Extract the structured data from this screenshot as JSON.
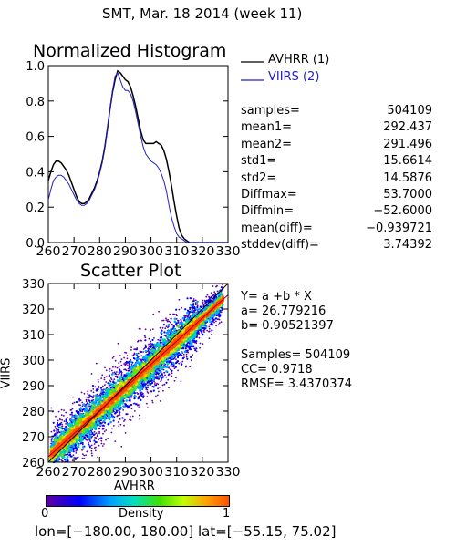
{
  "header": "SMT,  Mar. 18 2014 (week 11)",
  "colors": {
    "series1": "#000000",
    "series2": "#2020c8",
    "fit": "#000000"
  },
  "chart_data": [
    {
      "type": "line",
      "title": "Normalized Histogram",
      "xlim": [
        260,
        330
      ],
      "ylim": [
        0.0,
        1.0
      ],
      "xticks": [
        260,
        270,
        280,
        290,
        300,
        310,
        320,
        330
      ],
      "yticks": [
        0.0,
        0.2,
        0.4,
        0.6,
        0.8,
        1.0
      ],
      "legend_placement": "right",
      "x": [
        260,
        261,
        262,
        263,
        264,
        265,
        266,
        267,
        268,
        269,
        270,
        271,
        272,
        273,
        274,
        275,
        276,
        277,
        278,
        279,
        280,
        281,
        282,
        283,
        284,
        285,
        286,
        287,
        288,
        289,
        290,
        291,
        292,
        293,
        294,
        295,
        296,
        297,
        298,
        299,
        300,
        301,
        302,
        303,
        304,
        305,
        306,
        307,
        308,
        309,
        310,
        311,
        312,
        313,
        314,
        315,
        316,
        317,
        318,
        319,
        320,
        321,
        322,
        323,
        324,
        325,
        326,
        327,
        328,
        329,
        330
      ],
      "series": [
        {
          "name": "AVHRR (1)",
          "values": [
            0.35,
            0.4,
            0.44,
            0.46,
            0.46,
            0.45,
            0.43,
            0.41,
            0.38,
            0.34,
            0.3,
            0.26,
            0.23,
            0.22,
            0.22,
            0.23,
            0.25,
            0.28,
            0.31,
            0.35,
            0.4,
            0.46,
            0.54,
            0.64,
            0.75,
            0.85,
            0.92,
            0.97,
            0.96,
            0.94,
            0.92,
            0.91,
            0.88,
            0.83,
            0.77,
            0.7,
            0.63,
            0.58,
            0.56,
            0.56,
            0.56,
            0.56,
            0.57,
            0.56,
            0.55,
            0.52,
            0.47,
            0.4,
            0.32,
            0.23,
            0.15,
            0.08,
            0.04,
            0.02,
            0.01,
            0.0,
            0.0,
            0.0,
            0.0,
            0.0,
            0.0,
            0.0,
            0.0,
            0.0,
            0.0,
            0.0,
            0.0,
            0.0,
            0.0,
            0.0,
            0.0
          ]
        },
        {
          "name": "VIIRS (2)",
          "values": [
            0.24,
            0.3,
            0.35,
            0.37,
            0.38,
            0.38,
            0.37,
            0.35,
            0.33,
            0.3,
            0.27,
            0.24,
            0.22,
            0.21,
            0.21,
            0.22,
            0.24,
            0.27,
            0.3,
            0.34,
            0.39,
            0.45,
            0.53,
            0.63,
            0.75,
            0.86,
            0.94,
            0.96,
            0.92,
            0.88,
            0.86,
            0.86,
            0.84,
            0.8,
            0.74,
            0.67,
            0.6,
            0.54,
            0.5,
            0.48,
            0.46,
            0.45,
            0.44,
            0.42,
            0.39,
            0.35,
            0.29,
            0.21,
            0.14,
            0.09,
            0.05,
            0.03,
            0.02,
            0.01,
            0.0,
            0.0,
            0.0,
            0.0,
            0.0,
            0.0,
            0.0,
            0.0,
            0.0,
            0.0,
            0.0,
            0.0,
            0.0,
            0.0,
            0.0,
            0.0,
            0.0
          ]
        }
      ],
      "stats": [
        {
          "label": "samples=",
          "value": "504109"
        },
        {
          "label": "mean1=",
          "value": "292.437"
        },
        {
          "label": "mean2=",
          "value": "291.496"
        },
        {
          "label": "std1=",
          "value": "15.6614"
        },
        {
          "label": "std2=",
          "value": "14.5876"
        },
        {
          "label": "Diffmax=",
          "value": "53.7000"
        },
        {
          "label": "Diffmin=",
          "value": "−52.6000"
        },
        {
          "label": "mean(diff)=",
          "value": "−0.939721"
        },
        {
          "label": "stddev(diff)=",
          "value": "3.74392"
        }
      ]
    },
    {
      "type": "scatter",
      "title": "Scatter Plot",
      "xlabel": "AVHRR",
      "ylabel": "VIIRS",
      "xlim": [
        260,
        330
      ],
      "ylim": [
        260,
        330
      ],
      "xticks": [
        260,
        270,
        280,
        290,
        300,
        310,
        320,
        330
      ],
      "yticks": [
        260,
        270,
        280,
        290,
        300,
        310,
        320,
        330
      ],
      "fit_line": {
        "intercept": 26.779216,
        "slope": 0.90521397
      },
      "fit_text": {
        "eq": "Y= a +b * X",
        "a": "a= 26.779216",
        "b": "b= 0.90521397",
        "samples": "Samples= 504109",
        "cc": "CC=  0.9718",
        "rmse": "RMSE= 3.4370374"
      }
    }
  ],
  "colorbar": {
    "min_label": "0",
    "max_label": "1",
    "title": "Density"
  },
  "footer": "lon=[−180.00, 180.00] lat=[−55.15, 75.02]"
}
